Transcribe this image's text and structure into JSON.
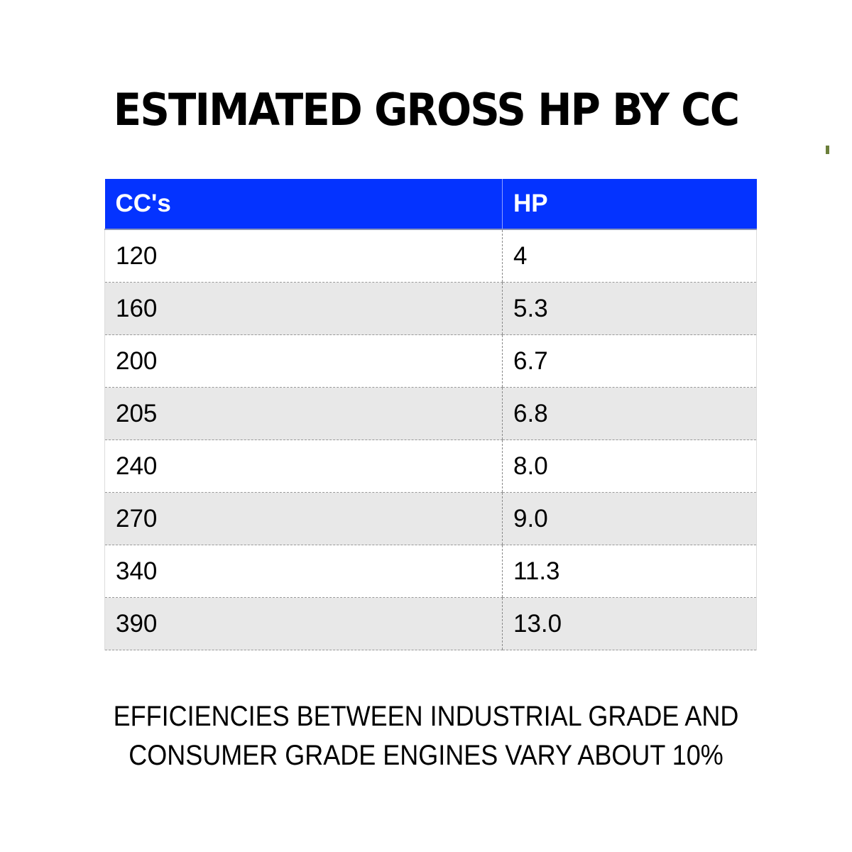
{
  "title": "ESTIMATED GROSS HP BY CC",
  "table": {
    "headers": [
      "CC's",
      "HP"
    ],
    "rows": [
      [
        "120",
        "4"
      ],
      [
        "160",
        "5.3"
      ],
      [
        "200",
        "6.7"
      ],
      [
        "205",
        "6.8"
      ],
      [
        "240",
        "8.0"
      ],
      [
        "270",
        "9.0"
      ],
      [
        "340",
        "11.3"
      ],
      [
        "390",
        "13.0"
      ]
    ]
  },
  "footer": {
    "line1": "EFFICIENCIES BETWEEN INDUSTRIAL GRADE AND",
    "line2": "CONSUMER GRADE ENGINES VARY ABOUT 10%"
  },
  "colors": {
    "header_bg": "#0433ff",
    "alt_row": "#e8e8e8"
  }
}
